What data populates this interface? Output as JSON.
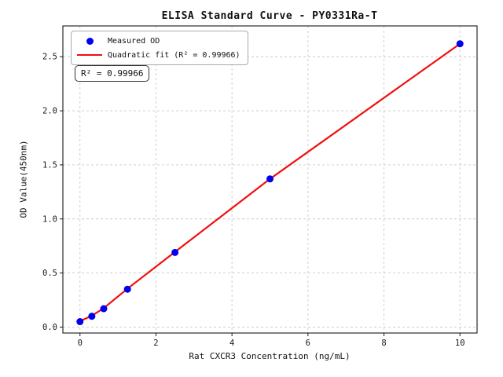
{
  "chart_data": {
    "type": "scatter",
    "title": "ELISA Standard Curve - PY0331Ra-T",
    "xlabel": "Rat CXCR3 Concentration (ng/mL)",
    "ylabel": "OD Value(450nm)",
    "xlim": [
      -0.45,
      10.45
    ],
    "ylim": [
      -0.055,
      2.785
    ],
    "x_ticks": [
      0,
      2,
      4,
      6,
      8,
      10
    ],
    "y_ticks": [
      0.0,
      0.5,
      1.0,
      1.5,
      2.0,
      2.5
    ],
    "grid": true,
    "grid_style": "dashed",
    "grid_color": "#c9c9c9",
    "frame_color": "#2b2b2b",
    "legend_position": "upper-left",
    "annotation": "R² = 0.99966",
    "series": [
      {
        "name": "Measured OD",
        "type": "scatter",
        "color": "#0000ee",
        "marker": "circle",
        "x": [
          0,
          0.3125,
          0.625,
          1.25,
          2.5,
          5,
          10
        ],
        "y": [
          0.05,
          0.1,
          0.17,
          0.35,
          0.69,
          1.37,
          2.62
        ]
      },
      {
        "name": "Quadratic fit (R² = 0.99966)",
        "type": "line",
        "color": "#f10e0e",
        "x": [
          0,
          0.3125,
          0.625,
          1.25,
          2.5,
          5,
          10
        ],
        "y": [
          0.055,
          0.105,
          0.175,
          0.355,
          0.695,
          1.37,
          2.62
        ]
      }
    ],
    "r_squared": 0.99966
  }
}
